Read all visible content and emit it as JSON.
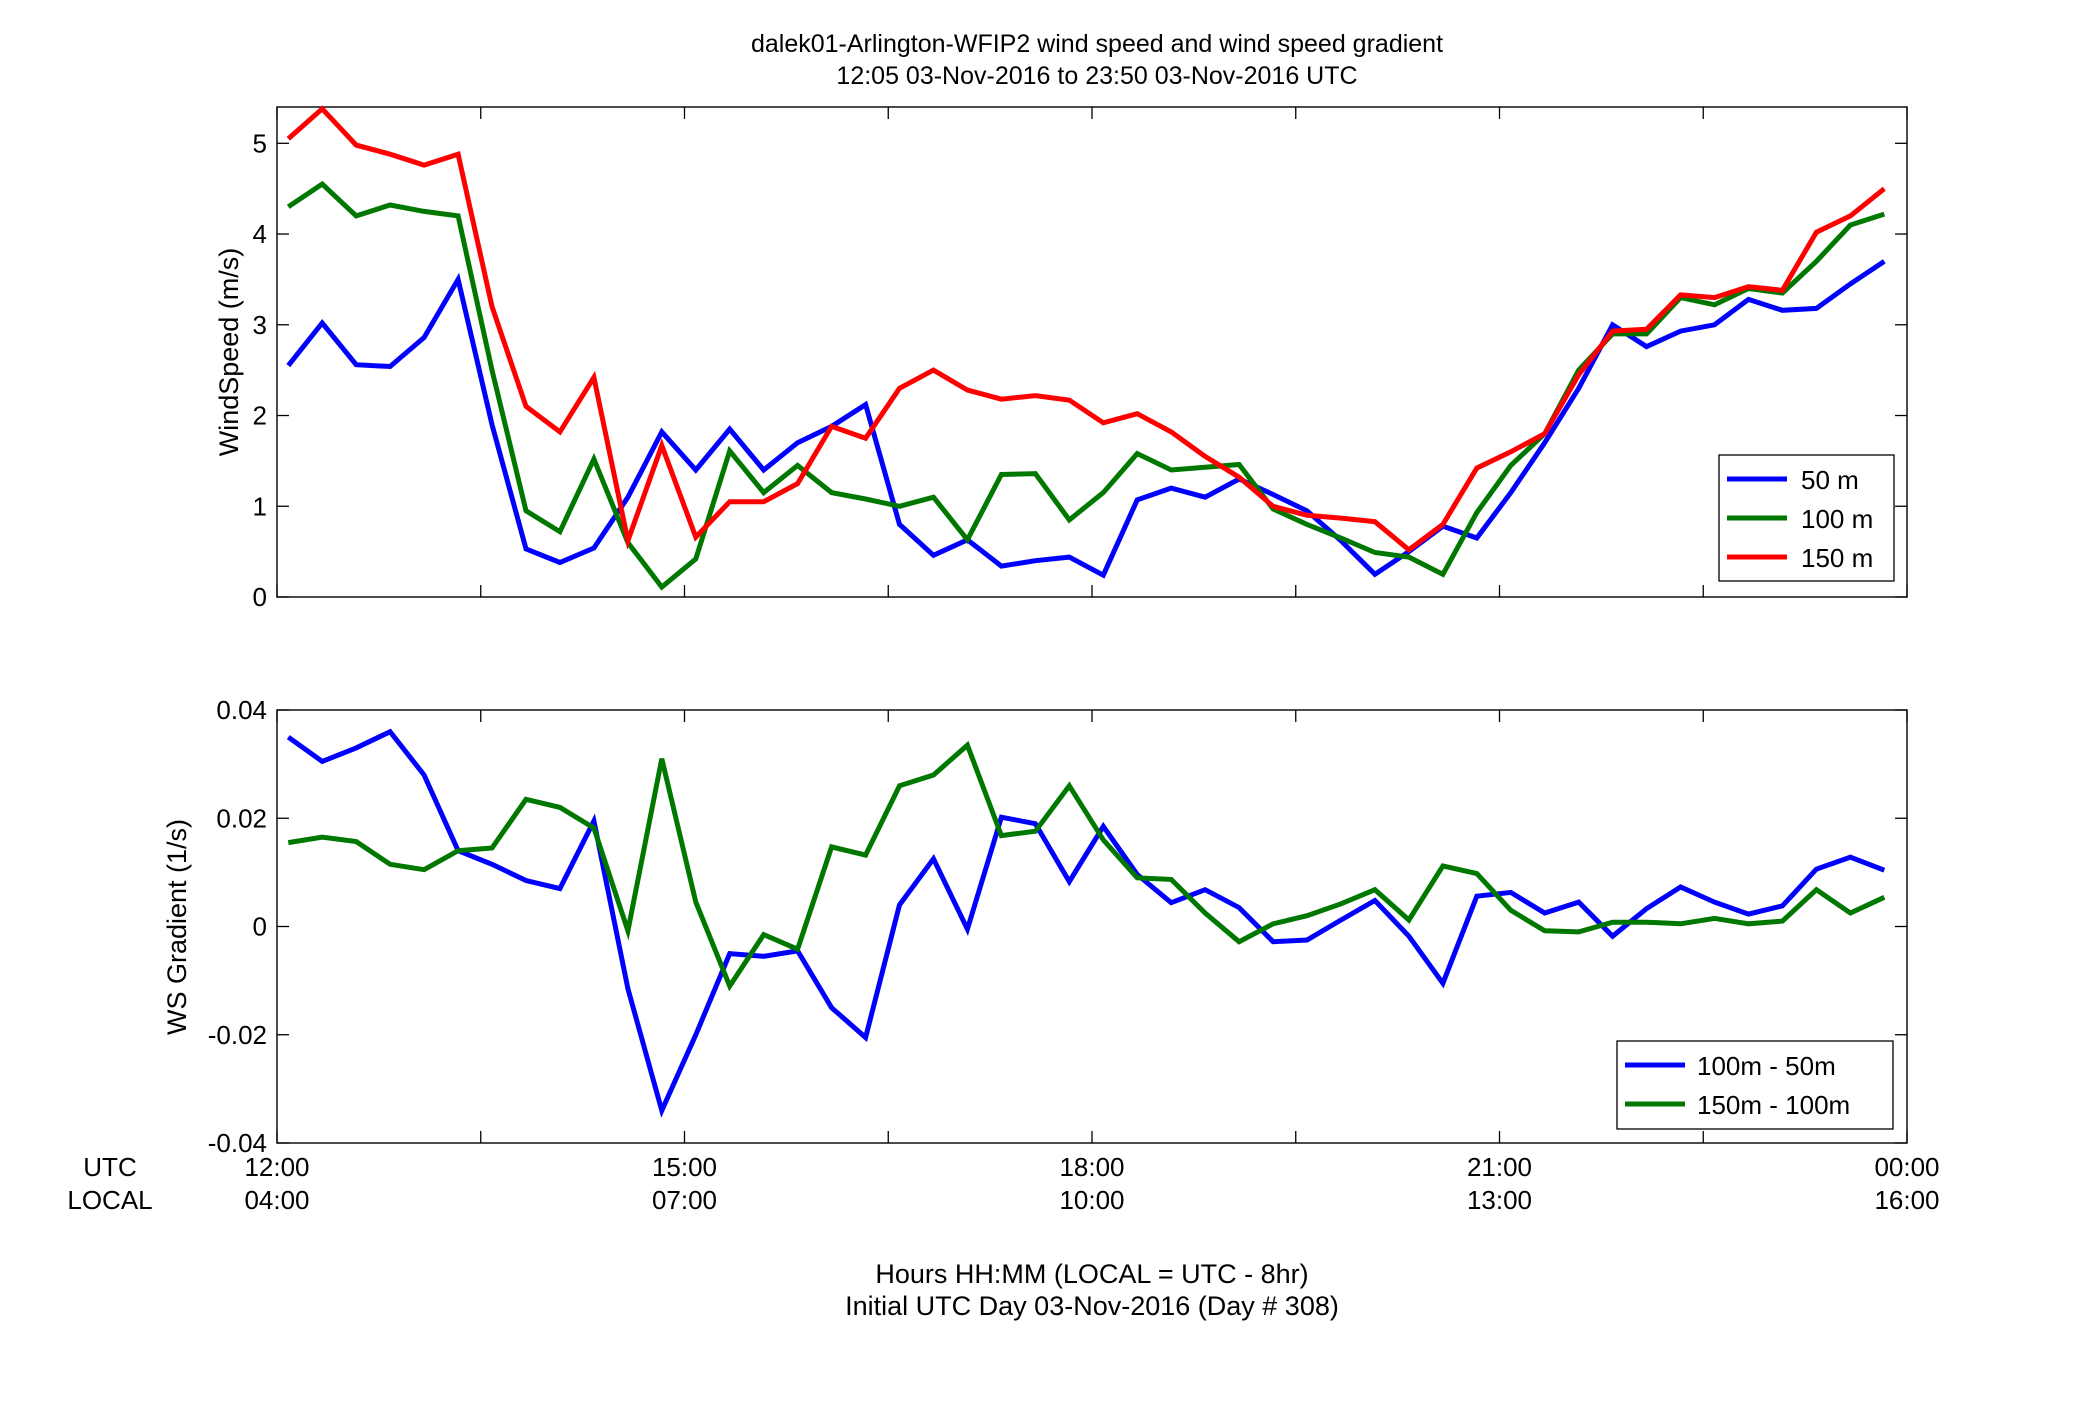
{
  "chart_data": [
    {
      "type": "line",
      "title": "dalek01-Arlington-WFIP2  wind speed and wind speed gradient",
      "subtitle": "12:05 03-Nov-2016 to 23:50 03-Nov-2016  UTC",
      "ylabel": "WindSpeed (m/s)",
      "xlim": [
        12,
        24
      ],
      "ylim": [
        0,
        5.4
      ],
      "yticks": [
        "0",
        "1",
        "2",
        "3",
        "4",
        "5"
      ],
      "grid": false,
      "legend_position": "lower-right",
      "x": [
        12.083,
        12.333,
        12.583,
        12.833,
        13.083,
        13.333,
        13.583,
        13.833,
        14.083,
        14.333,
        14.583,
        14.833,
        15.083,
        15.333,
        15.583,
        15.833,
        16.083,
        16.333,
        16.583,
        16.833,
        17.083,
        17.333,
        17.583,
        17.833,
        18.083,
        18.333,
        18.583,
        18.833,
        19.083,
        19.333,
        19.583,
        19.833,
        20.083,
        20.333,
        20.583,
        20.833,
        21.083,
        21.333,
        21.583,
        21.833,
        22.083,
        22.333,
        22.583,
        22.833,
        23.083,
        23.333,
        23.583,
        23.833
      ],
      "series": [
        {
          "name": "50 m",
          "color": "#0000ff",
          "values": [
            2.55,
            3.02,
            2.56,
            2.54,
            2.86,
            3.5,
            1.9,
            0.53,
            0.38,
            0.54,
            1.1,
            1.82,
            1.4,
            1.85,
            1.4,
            1.7,
            1.88,
            2.12,
            0.8,
            0.46,
            0.63,
            0.34,
            0.4,
            0.44,
            0.24,
            1.07,
            1.2,
            1.1,
            1.3,
            1.13,
            0.95,
            0.62,
            0.25,
            0.5,
            0.78,
            0.65,
            1.15,
            1.7,
            2.3,
            3.0,
            2.76,
            2.93,
            3.0,
            3.28,
            3.16,
            3.18,
            3.45,
            3.7
          ]
        },
        {
          "name": "100 m",
          "color": "#007800",
          "values": [
            4.3,
            4.55,
            4.2,
            4.32,
            4.25,
            4.2,
            2.5,
            0.95,
            0.72,
            1.52,
            0.6,
            0.11,
            0.42,
            1.61,
            1.15,
            1.45,
            1.15,
            1.08,
            1.0,
            1.1,
            0.63,
            1.35,
            1.36,
            0.85,
            1.15,
            1.58,
            1.4,
            1.43,
            1.46,
            0.97,
            0.8,
            0.65,
            0.49,
            0.44,
            0.25,
            0.93,
            1.45,
            1.8,
            2.5,
            2.9,
            2.9,
            3.3,
            3.22,
            3.4,
            3.35,
            3.7,
            4.1,
            4.22
          ]
        },
        {
          "name": "150 m",
          "color": "#ff0000",
          "values": [
            5.05,
            5.38,
            4.98,
            4.88,
            4.76,
            4.88,
            3.2,
            2.1,
            1.82,
            2.42,
            0.62,
            1.67,
            0.66,
            1.05,
            1.05,
            1.25,
            1.88,
            1.75,
            2.3,
            2.5,
            2.28,
            2.18,
            2.22,
            2.17,
            1.92,
            2.02,
            1.82,
            1.55,
            1.32,
            1.0,
            0.9,
            0.87,
            0.83,
            0.52,
            0.8,
            1.42,
            1.6,
            1.8,
            2.45,
            2.93,
            2.95,
            3.33,
            3.3,
            3.42,
            3.38,
            4.02,
            4.2,
            4.5
          ]
        }
      ]
    },
    {
      "type": "line",
      "ylabel": "WS Gradient (1/s)",
      "xlim": [
        12,
        24
      ],
      "ylim": [
        -0.04,
        0.04
      ],
      "yticks": [
        "-0.04",
        "-0.02",
        "0",
        "0.02",
        "0.04"
      ],
      "grid": false,
      "legend_position": "lower-right",
      "x": [
        12.083,
        12.333,
        12.583,
        12.833,
        13.083,
        13.333,
        13.583,
        13.833,
        14.083,
        14.333,
        14.583,
        14.833,
        15.083,
        15.333,
        15.583,
        15.833,
        16.083,
        16.333,
        16.583,
        16.833,
        17.083,
        17.333,
        17.583,
        17.833,
        18.083,
        18.333,
        18.583,
        18.833,
        19.083,
        19.333,
        19.583,
        19.833,
        20.083,
        20.333,
        20.583,
        20.833,
        21.083,
        21.333,
        21.583,
        21.833,
        22.083,
        22.333,
        22.583,
        22.833,
        23.083,
        23.333,
        23.583,
        23.833
      ],
      "series": [
        {
          "name": "100m - 50m",
          "color": "#0000ff",
          "values": [
            0.035,
            0.0305,
            0.033,
            0.036,
            0.028,
            0.014,
            0.0115,
            0.0085,
            0.007,
            0.0195,
            -0.0115,
            -0.034,
            -0.02,
            -0.005,
            -0.0055,
            -0.0045,
            -0.015,
            -0.0205,
            0.004,
            0.0125,
            -0.0005,
            0.0202,
            0.019,
            0.0083,
            0.0185,
            0.0096,
            0.0044,
            0.0068,
            0.0035,
            -0.0028,
            -0.0025,
            0.0012,
            0.0048,
            -0.0018,
            -0.0105,
            0.0056,
            0.0063,
            0.0025,
            0.0045,
            -0.0018,
            0.0033,
            0.0073,
            0.0045,
            0.0023,
            0.0038,
            0.0106,
            0.0128,
            0.0104
          ]
        },
        {
          "name": "150m - 100m",
          "color": "#007800",
          "values": [
            0.0155,
            0.0165,
            0.0157,
            0.0115,
            0.0105,
            0.014,
            0.0145,
            0.0235,
            0.022,
            0.0182,
            -0.0008,
            0.031,
            0.0045,
            -0.011,
            -0.0015,
            -0.0042,
            0.0147,
            0.0132,
            0.026,
            0.028,
            0.0335,
            0.0168,
            0.0176,
            0.026,
            0.016,
            0.009,
            0.0087,
            0.0025,
            -0.0028,
            0.0005,
            0.002,
            0.0042,
            0.0068,
            0.0012,
            0.0112,
            0.0098,
            0.003,
            -0.0008,
            -0.001,
            0.0008,
            0.0008,
            0.0005,
            0.0015,
            0.0005,
            0.001,
            0.0068,
            0.0025,
            0.0054
          ]
        }
      ],
      "x_axis_labels": {
        "utc_label": "UTC",
        "local_label": "LOCAL",
        "utc_ticks": [
          "12:00",
          "15:00",
          "18:00",
          "21:00",
          "00:00"
        ],
        "local_ticks": [
          "04:00",
          "07:00",
          "10:00",
          "13:00",
          "16:00"
        ],
        "xlabel_line1": "Hours HH:MM  (LOCAL = UTC - 8hr)",
        "xlabel_line2": "Initial UTC Day 03-Nov-2016 (Day # 308)"
      }
    }
  ]
}
